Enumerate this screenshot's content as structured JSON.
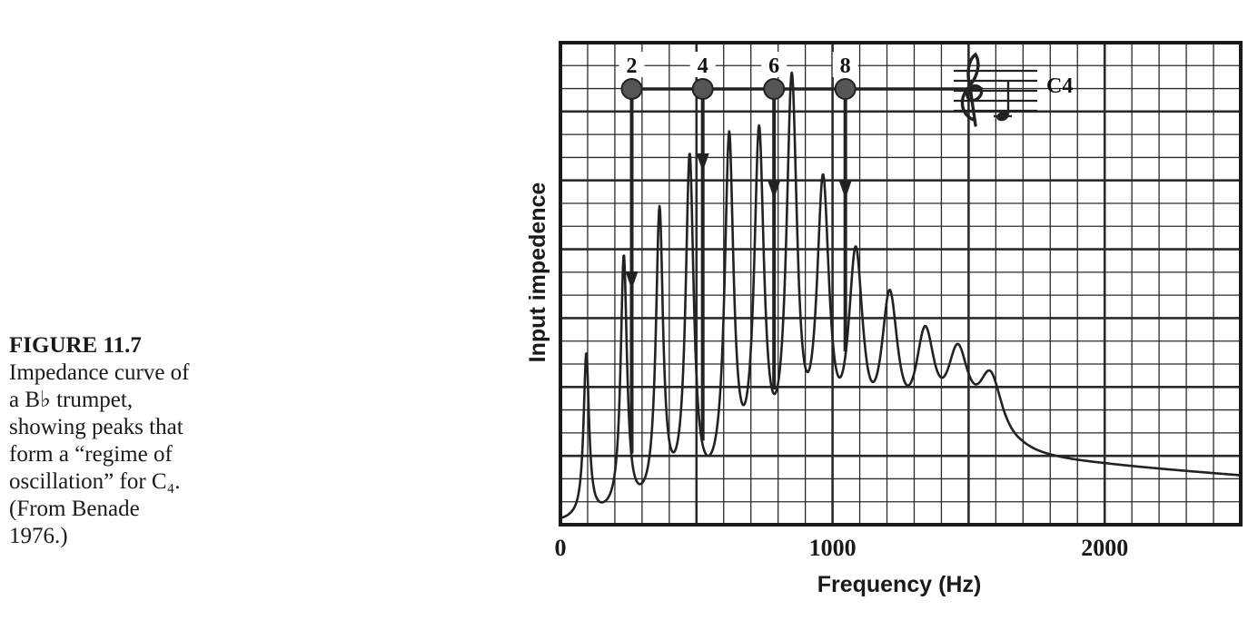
{
  "caption": {
    "figure_label": "FIGURE 11.7",
    "lines": [
      "Impedance curve of",
      "a B♭ trumpet,",
      "showing peaks that",
      "form a “regime of",
      "oscillation” for C₄.",
      "(From Benade",
      "1976.)"
    ]
  },
  "chart_data": {
    "type": "line",
    "title": "",
    "xlabel": "Frequency (Hz)",
    "ylabel": "Input impedence",
    "xlim": [
      0,
      2500
    ],
    "ylim": [
      0,
      100
    ],
    "x_ticks": [
      0,
      1000,
      2000
    ],
    "x_tick_labels": [
      "0",
      "1000",
      "2000"
    ],
    "grid": true,
    "series": [
      {
        "peaks": [
          {
            "f": 95,
            "h": 34,
            "w": 12
          },
          {
            "f": 233,
            "h": 53,
            "w": 14
          },
          {
            "f": 364,
            "h": 61,
            "w": 16
          },
          {
            "f": 475,
            "h": 71,
            "w": 18
          },
          {
            "f": 620,
            "h": 73,
            "w": 20
          },
          {
            "f": 730,
            "h": 72,
            "w": 22
          },
          {
            "f": 850,
            "h": 82,
            "w": 24
          },
          {
            "f": 965,
            "h": 59,
            "w": 28
          },
          {
            "f": 1085,
            "h": 43,
            "w": 33
          },
          {
            "f": 1210,
            "h": 33,
            "w": 38
          },
          {
            "f": 1340,
            "h": 24,
            "w": 45
          },
          {
            "f": 1460,
            "h": 19,
            "w": 50
          },
          {
            "f": 1580,
            "h": 15,
            "w": 55
          }
        ],
        "baseline": [
          {
            "f": 0,
            "z": 0
          },
          {
            "f": 300,
            "z": 1
          },
          {
            "f": 900,
            "z": 4
          },
          {
            "f": 1300,
            "z": 9
          },
          {
            "f": 1500,
            "z": 12
          },
          {
            "f": 1700,
            "z": 13
          },
          {
            "f": 2000,
            "z": 12
          },
          {
            "f": 2500,
            "z": 10
          }
        ]
      }
    ],
    "regime": {
      "note": "C4",
      "harmonics": [
        {
          "label": "2",
          "f": 262
        },
        {
          "label": "4",
          "f": 523
        },
        {
          "label": "6",
          "f": 785
        },
        {
          "label": "8",
          "f": 1047
        }
      ]
    }
  }
}
